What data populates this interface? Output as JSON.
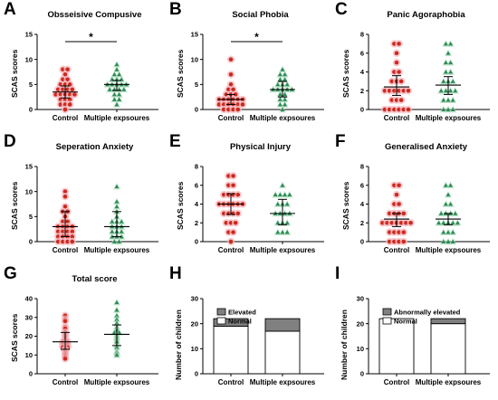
{
  "colors": {
    "control": "#cc2a1f",
    "control_halo": "#f5b9c0",
    "exposure": "#2e8a57",
    "exposure_halo": "#b8e2c6",
    "elevated": "#808080",
    "normal": "#ffffff"
  },
  "chart_data": [
    {
      "panel": "A",
      "type": "scatter",
      "title": "Obsseisive Compusive",
      "ylabel": "SCAS scores",
      "ylim": [
        0,
        15
      ],
      "yticks": [
        0,
        5,
        10,
        15
      ],
      "categories": [
        "Control",
        "Multiple expsoures"
      ],
      "significance": "*",
      "series": [
        {
          "values": [
            8,
            8,
            7,
            6,
            6,
            5,
            5,
            5,
            4,
            4,
            4,
            4,
            3,
            3,
            3,
            3,
            3,
            2,
            2,
            2,
            1,
            1,
            1,
            0
          ],
          "median": 3.5,
          "iqr": [
            2.3,
            4.7
          ]
        },
        {
          "values": [
            9,
            8,
            7,
            7,
            6,
            6,
            6,
            5,
            5,
            5,
            5,
            5,
            4,
            4,
            4,
            4,
            3,
            3,
            2,
            2,
            1
          ],
          "median": 5,
          "iqr": [
            3.8,
            5.8
          ]
        }
      ]
    },
    {
      "panel": "B",
      "type": "scatter",
      "title": "Social Phobia",
      "ylabel": "SCAS scores",
      "ylim": [
        0,
        15
      ],
      "yticks": [
        0,
        5,
        10,
        15
      ],
      "categories": [
        "Control",
        "Multiple expsoures"
      ],
      "significance": "*",
      "series": [
        {
          "values": [
            10,
            7,
            5,
            4,
            4,
            3,
            3,
            3,
            2,
            2,
            2,
            2,
            2,
            2,
            1,
            1,
            1,
            1,
            1,
            1,
            0,
            0,
            0,
            0
          ],
          "median": 2,
          "iqr": [
            1,
            3
          ]
        },
        {
          "values": [
            8,
            7,
            7,
            6,
            6,
            5,
            5,
            5,
            4,
            4,
            4,
            4,
            4,
            3,
            3,
            2,
            2,
            1,
            1,
            0
          ],
          "median": 4,
          "iqr": [
            2.5,
            5.6
          ]
        }
      ]
    },
    {
      "panel": "C",
      "type": "scatter",
      "title": "Panic Agoraphobia",
      "ylabel": "SCAS scores",
      "ylim": [
        0,
        8
      ],
      "yticks": [
        0,
        2,
        4,
        6,
        8
      ],
      "categories": [
        "Control",
        "Multiple expsoures"
      ],
      "significance": "",
      "series": [
        {
          "values": [
            7,
            7,
            6,
            5,
            4,
            4,
            3,
            3,
            3,
            2,
            2,
            2,
            2,
            2,
            2,
            1,
            1,
            1,
            0,
            0,
            0,
            0,
            0,
            0
          ],
          "median": 2.4,
          "iqr": [
            1.5,
            3.6
          ]
        },
        {
          "values": [
            7,
            7,
            6,
            5,
            5,
            4,
            4,
            3,
            3,
            3,
            2,
            2,
            2,
            2,
            1,
            1,
            1,
            0,
            0,
            0
          ],
          "median": 2.6,
          "iqr": [
            1.6,
            3.5
          ]
        }
      ]
    },
    {
      "panel": "D",
      "type": "scatter",
      "title": "Seperation Anxiety",
      "ylabel": "SCAS scores",
      "ylim": [
        0,
        15
      ],
      "yticks": [
        0,
        5,
        10,
        15
      ],
      "categories": [
        "Control",
        "Multiple expsoures"
      ],
      "significance": "",
      "series": [
        {
          "values": [
            10,
            9,
            7,
            6,
            6,
            5,
            4,
            4,
            3,
            3,
            3,
            3,
            2,
            2,
            2,
            2,
            1,
            1,
            1,
            1,
            0,
            0,
            0,
            0
          ],
          "median": 3,
          "iqr": [
            1,
            6
          ]
        },
        {
          "values": [
            11,
            8,
            7,
            6,
            5,
            4,
            4,
            4,
            3,
            3,
            3,
            2,
            2,
            2,
            1,
            1,
            1,
            0,
            0
          ],
          "median": 3,
          "iqr": [
            1,
            6
          ]
        }
      ]
    },
    {
      "panel": "E",
      "type": "scatter",
      "title": "Physical Injury",
      "ylabel": "SCAS scores",
      "ylim": [
        0,
        8
      ],
      "yticks": [
        0,
        2,
        4,
        6,
        8
      ],
      "categories": [
        "Control",
        "Multiple expsoures"
      ],
      "significance": "",
      "series": [
        {
          "values": [
            7,
            7,
            6,
            6,
            5,
            5,
            5,
            5,
            4,
            4,
            4,
            4,
            4,
            4,
            3,
            3,
            3,
            3,
            2,
            2,
            2,
            1,
            1,
            0
          ],
          "median": 4,
          "iqr": [
            2.9,
            5.1
          ]
        },
        {
          "values": [
            6,
            5,
            5,
            5,
            5,
            4,
            4,
            4,
            3,
            3,
            3,
            3,
            2,
            2,
            2,
            1,
            1,
            1
          ],
          "median": 3,
          "iqr": [
            1.8,
            4.5
          ]
        }
      ]
    },
    {
      "panel": "F",
      "type": "scatter",
      "title": "Generalised Anxiety",
      "ylabel": "SCAS scores",
      "ylim": [
        0,
        8
      ],
      "yticks": [
        0,
        2,
        4,
        6,
        8
      ],
      "categories": [
        "Control",
        "Multiple expsoures"
      ],
      "significance": "",
      "series": [
        {
          "values": [
            6,
            6,
            5,
            4,
            4,
            3,
            3,
            3,
            3,
            2,
            2,
            2,
            2,
            2,
            2,
            2,
            1,
            1,
            1,
            1,
            0,
            0,
            0,
            0
          ],
          "median": 2.4,
          "iqr": [
            1.6,
            3
          ]
        },
        {
          "values": [
            6,
            6,
            5,
            4,
            4,
            3,
            3,
            3,
            3,
            2,
            2,
            2,
            2,
            2,
            1,
            1,
            1,
            0,
            0,
            0
          ],
          "median": 2.4,
          "iqr": [
            1.8,
            3
          ]
        }
      ]
    },
    {
      "panel": "G",
      "type": "scatter",
      "title": "Total score",
      "ylabel": "SCAS scores",
      "ylim": [
        0,
        40
      ],
      "yticks": [
        0,
        10,
        20,
        30,
        40
      ],
      "categories": [
        "Control",
        "Multiple expsoures"
      ],
      "significance": "",
      "series": [
        {
          "values": [
            31,
            29,
            28,
            25,
            24,
            22,
            21,
            20,
            19,
            18,
            17,
            17,
            16,
            16,
            15,
            15,
            14,
            14,
            13,
            12,
            11,
            10,
            9,
            8
          ],
          "median": 17,
          "iqr": [
            13,
            22
          ]
        },
        {
          "values": [
            38,
            34,
            31,
            29,
            27,
            25,
            24,
            23,
            22,
            22,
            21,
            20,
            19,
            18,
            17,
            15,
            14,
            12,
            11,
            10
          ],
          "median": 21,
          "iqr": [
            15,
            26
          ]
        }
      ]
    },
    {
      "panel": "H",
      "type": "bar",
      "stacked": true,
      "title": "",
      "ylabel": "Number of children",
      "ylim": [
        0,
        30
      ],
      "yticks": [
        0,
        10,
        20,
        30
      ],
      "categories": [
        "Control",
        "Multiple expsoures"
      ],
      "series": [
        {
          "name": "Normal",
          "values": [
            19,
            17
          ]
        },
        {
          "name": "Elevated",
          "values": [
            3,
            5
          ]
        }
      ]
    },
    {
      "panel": "I",
      "type": "bar",
      "stacked": true,
      "title": "",
      "ylabel": "Number of children",
      "ylim": [
        0,
        30
      ],
      "yticks": [
        0,
        10,
        20,
        30
      ],
      "categories": [
        "Control",
        "Multiple expsoures"
      ],
      "series": [
        {
          "name": "Normal",
          "values": [
            22,
            20
          ]
        },
        {
          "name": "Abnormally elevated",
          "values": [
            0,
            2
          ]
        }
      ]
    }
  ]
}
